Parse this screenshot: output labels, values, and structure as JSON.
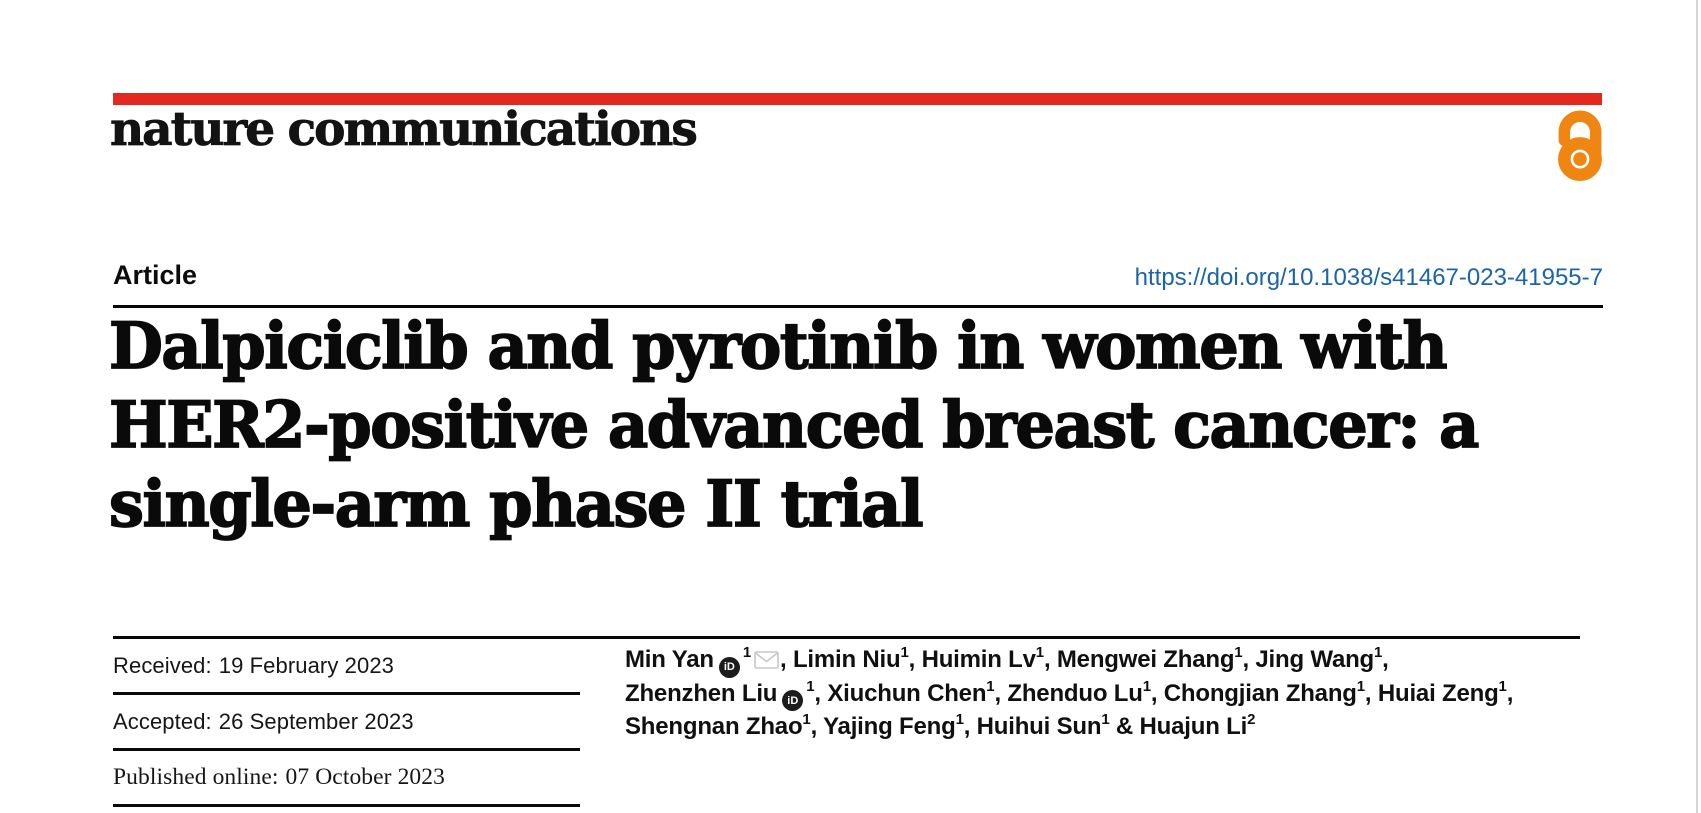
{
  "brand": {
    "logo_text": "nature communications",
    "red_bar_color": "#e3291d",
    "open_access_color": "#ee8611",
    "open_access_icon": "open-access-lock"
  },
  "article": {
    "kicker": "Article",
    "doi": "https://doi.org/10.1038/s41467-023-41955-7",
    "doi_color": "#1b64a8",
    "title_lines": [
      "Dalpiciclib and pyrotinib in women with",
      "HER2-positive advanced breast cancer: a",
      "single-arm phase II trial"
    ]
  },
  "history": {
    "rows": [
      {
        "key": "received",
        "label": "Received:",
        "value": "19 February 2023",
        "serif": false
      },
      {
        "key": "accepted",
        "label": "Accepted:",
        "value": "26 September 2023",
        "serif": false
      },
      {
        "key": "published-online",
        "label": "Published online:",
        "value": "07 October 2023",
        "serif": true
      }
    ]
  },
  "authors": {
    "lines": [
      [
        {
          "t": "text",
          "v": "Min Yan"
        },
        {
          "t": "orcid"
        },
        {
          "t": "sup",
          "v": "1"
        },
        {
          "t": "email"
        },
        {
          "t": "text",
          "v": ", Limin Niu"
        },
        {
          "t": "sup",
          "v": "1"
        },
        {
          "t": "text",
          "v": ", Huimin Lv"
        },
        {
          "t": "sup",
          "v": "1"
        },
        {
          "t": "text",
          "v": ", Mengwei Zhang"
        },
        {
          "t": "sup",
          "v": "1"
        },
        {
          "t": "text",
          "v": ", Jing Wang"
        },
        {
          "t": "sup",
          "v": "1"
        },
        {
          "t": "text",
          "v": ","
        }
      ],
      [
        {
          "t": "text",
          "v": "Zhenzhen Liu"
        },
        {
          "t": "orcid"
        },
        {
          "t": "sup",
          "v": "1"
        },
        {
          "t": "text",
          "v": ", Xiuchun Chen"
        },
        {
          "t": "sup",
          "v": "1"
        },
        {
          "t": "text",
          "v": ", Zhenduo Lu"
        },
        {
          "t": "sup",
          "v": "1"
        },
        {
          "t": "text",
          "v": ", Chongjian Zhang"
        },
        {
          "t": "sup",
          "v": "1"
        },
        {
          "t": "text",
          "v": ", Huiai Zeng"
        },
        {
          "t": "sup",
          "v": "1"
        },
        {
          "t": "text",
          "v": ","
        }
      ],
      [
        {
          "t": "text",
          "v": "Shengnan Zhao"
        },
        {
          "t": "sup",
          "v": "1"
        },
        {
          "t": "text",
          "v": ", Yajing Feng"
        },
        {
          "t": "sup",
          "v": "1"
        },
        {
          "t": "text",
          "v": ", Huihui Sun"
        },
        {
          "t": "sup",
          "v": "1"
        },
        {
          "t": "text",
          "v": " & Huajun Li"
        },
        {
          "t": "sup",
          "v": "2"
        }
      ]
    ]
  }
}
